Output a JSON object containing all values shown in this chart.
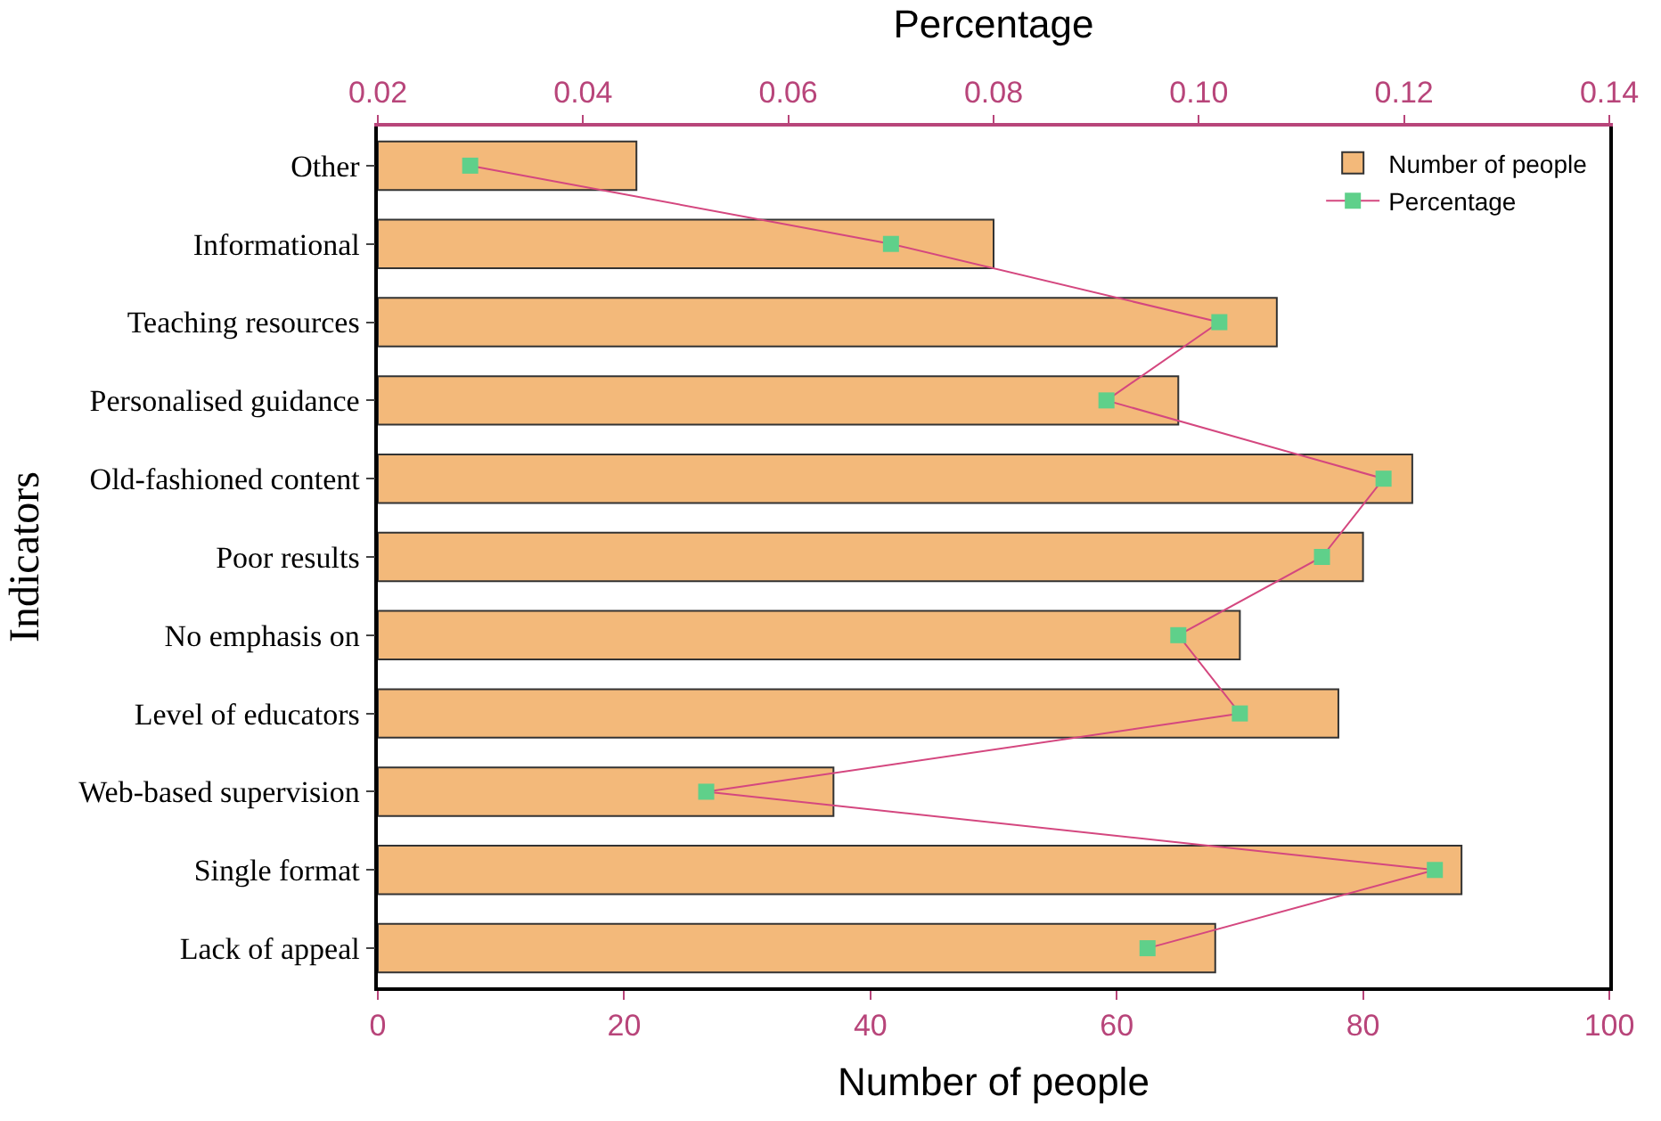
{
  "chart_data": {
    "type": "bar",
    "orientation": "horizontal",
    "categories": [
      "Other",
      "Informational",
      "Teaching resources",
      "Personalised guidance",
      "Old-fashioned content",
      "Poor results",
      "No emphasis on",
      "Level of educators",
      "Web-based supervision",
      "Single format",
      "Lack of appeal"
    ],
    "series": [
      {
        "name": "Number of people",
        "color": "#f3b97a",
        "values": [
          21,
          50,
          73,
          65,
          84,
          80,
          70,
          78,
          37,
          88,
          68
        ]
      },
      {
        "name": "Percentage",
        "type": "line",
        "axis": "x2",
        "color": "#d4477f",
        "marker": "square",
        "values": [
          0.029,
          0.07,
          0.102,
          0.091,
          0.118,
          0.112,
          0.098,
          0.104,
          0.052,
          0.123,
          0.095
        ]
      }
    ],
    "xlabel": "Number of people",
    "x2label": "Percentage",
    "ylabel": "Indicators",
    "xlim": [
      0,
      100
    ],
    "xticks": [
      0,
      20,
      40,
      60,
      80,
      100
    ],
    "x2lim": [
      0.02,
      0.14
    ],
    "x2ticks": [
      {
        "value": 0.02,
        "label": "0.02"
      },
      {
        "value": 0.04,
        "label": "0.04"
      },
      {
        "value": 0.06,
        "label": "0.06"
      },
      {
        "value": 0.08,
        "label": "0.08"
      },
      {
        "value": 0.1,
        "label": "0.10"
      },
      {
        "value": 0.12,
        "label": "0.12"
      },
      {
        "value": 0.14,
        "label": "0.14"
      }
    ],
    "legend": "top right"
  }
}
